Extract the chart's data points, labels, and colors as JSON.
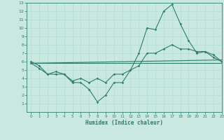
{
  "line1": {
    "x": [
      0,
      1,
      2,
      3,
      4,
      5,
      6,
      7,
      8,
      9,
      10,
      11,
      12,
      13,
      14,
      15,
      16,
      17,
      18,
      19,
      20,
      21,
      22,
      23
    ],
    "y": [
      6.0,
      5.5,
      4.5,
      4.5,
      4.5,
      3.5,
      3.5,
      2.7,
      1.2,
      2.0,
      3.5,
      3.5,
      5.0,
      7.0,
      10.0,
      9.8,
      12.0,
      12.8,
      10.5,
      8.5,
      7.0,
      7.2,
      6.8,
      6.0
    ]
  },
  "line2": {
    "x": [
      0,
      1,
      2,
      3,
      4,
      5,
      6,
      7,
      8,
      9,
      10,
      11,
      12,
      13,
      14,
      15,
      16,
      17,
      18,
      19,
      20,
      21,
      22,
      23
    ],
    "y": [
      5.8,
      5.2,
      4.5,
      4.8,
      4.5,
      3.7,
      4.0,
      3.5,
      4.0,
      3.5,
      4.5,
      4.5,
      5.0,
      5.5,
      7.0,
      7.0,
      7.5,
      8.0,
      7.5,
      7.5,
      7.2,
      7.2,
      6.5,
      6.0
    ]
  },
  "line3": {
    "x": [
      0,
      23
    ],
    "y": [
      5.8,
      6.2
    ]
  },
  "line4": {
    "x": [
      0,
      23
    ],
    "y": [
      5.8,
      5.8
    ]
  },
  "color": "#2e7d6e",
  "bg_color": "#c8e8e0",
  "grid_color": "#b0d8d0",
  "xlabel": "Humidex (Indice chaleur)",
  "xlim": [
    -0.5,
    23
  ],
  "ylim": [
    0,
    13
  ],
  "xticks": [
    0,
    1,
    2,
    3,
    4,
    5,
    6,
    7,
    8,
    9,
    10,
    11,
    12,
    13,
    14,
    15,
    16,
    17,
    18,
    19,
    20,
    21,
    22,
    23
  ],
  "yticks": [
    1,
    2,
    3,
    4,
    5,
    6,
    7,
    8,
    9,
    10,
    11,
    12,
    13
  ]
}
